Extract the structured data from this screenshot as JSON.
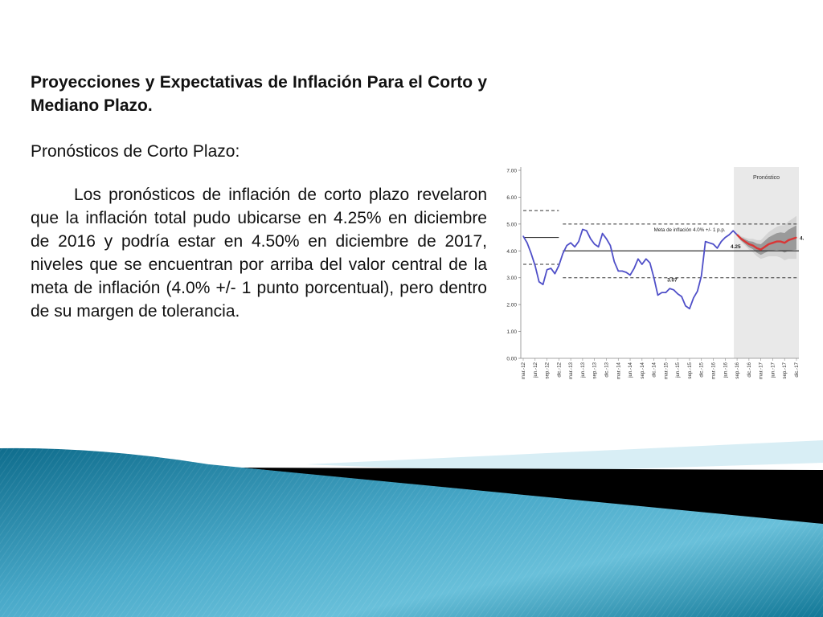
{
  "slide": {
    "title": "Proyecciones y Expectativas de Inflación Para el Corto y Mediano Plazo.",
    "subtitle": "Pronósticos de Corto Plazo:",
    "body": "Los pronósticos de inflación de corto plazo revelaron que la inflación total pudo ubicarse en 4.25% en diciembre de 2016 y podría estar en 4.50% en diciembre de 2017, niveles que se encuentran por arriba del valor central de la meta de inflación (4.0% +/- 1 punto porcentual), pero dentro de su margen de tolerancia."
  },
  "chart_data": {
    "type": "line",
    "title": "",
    "ylim": [
      0,
      7
    ],
    "yticks": [
      "0.00",
      "1.00",
      "2.00",
      "3.00",
      "4.00",
      "5.00",
      "6.00",
      "7.00"
    ],
    "x_ticks": [
      "mar.-12",
      "jun.-12",
      "sep.-12",
      "dic.-12",
      "mar.-13",
      "jun.-13",
      "sep.-13",
      "dic.-13",
      "mar.-14",
      "jun.-14",
      "sep.-14",
      "dic.-14",
      "mar.-15",
      "jun.-15",
      "sep.-15",
      "dic.-15",
      "mar.-16",
      "jun.-16",
      "sep.-16",
      "dic.-16",
      "mar.-17",
      "jun.-17",
      "sep.-17",
      "dic.-17"
    ],
    "forecast_label": "Pronóstico",
    "target_label": "Meta de inflación 4.0% +/- 1 p.p.",
    "target": {
      "central": 4.0,
      "upper": 5.0,
      "lower": 3.0
    },
    "old_target": {
      "central": 4.5,
      "upper": 5.5,
      "lower": 3.5
    },
    "series": [
      {
        "color": "#4f4fc8",
        "x": [
          "mar.-12",
          "abr.-12",
          "may.-12",
          "jun.-12",
          "jul.-12",
          "ago.-12",
          "sep.-12",
          "oct.-12",
          "nov.-12",
          "dic.-12",
          "ene.-13",
          "feb.-13",
          "mar.-13",
          "abr.-13",
          "may.-13",
          "jun.-13",
          "jul.-13",
          "ago.-13",
          "sep.-13",
          "oct.-13",
          "nov.-13",
          "dic.-13",
          "ene.-14",
          "feb.-14",
          "mar.-14",
          "abr.-14",
          "may.-14",
          "jun.-14",
          "jul.-14",
          "ago.-14",
          "sep.-14",
          "oct.-14",
          "nov.-14",
          "dic.-14",
          "ene.-15",
          "feb.-15",
          "mar.-15",
          "abr.-15",
          "may.-15",
          "jun.-15",
          "jul.-15",
          "ago.-15",
          "sep.-15",
          "oct.-15",
          "nov.-15",
          "dic.-15",
          "ene.-16",
          "feb.-16",
          "mar.-16",
          "abr.-16",
          "may.-16",
          "jun.-16",
          "jul.-16",
          "ago.-16",
          "sep.-16"
        ],
        "values": [
          4.55,
          4.3,
          3.9,
          3.45,
          2.85,
          2.75,
          3.3,
          3.35,
          3.15,
          3.45,
          3.9,
          4.2,
          4.3,
          4.15,
          4.35,
          4.8,
          4.75,
          4.45,
          4.25,
          4.15,
          4.65,
          4.45,
          4.2,
          3.6,
          3.25,
          3.25,
          3.2,
          3.1,
          3.35,
          3.7,
          3.5,
          3.7,
          3.55,
          3.0,
          2.35,
          2.45,
          2.45,
          2.6,
          2.55,
          2.4,
          2.3,
          1.95,
          1.85,
          2.25,
          2.5,
          3.07,
          4.35,
          4.3,
          4.25,
          4.1,
          4.35,
          4.5,
          4.6,
          4.75,
          4.6
        ]
      },
      {
        "color": "#d93636",
        "x": [
          "sep.-16",
          "oct.-16",
          "nov.-16",
          "dic.-16",
          "ene.-17",
          "feb.-17",
          "mar.-17",
          "abr.-17",
          "may.-17",
          "jun.-17",
          "jul.-17",
          "ago.-17",
          "sep.-17",
          "oct.-17",
          "nov.-17",
          "dic.-17"
        ],
        "values": [
          4.6,
          4.45,
          4.35,
          4.25,
          4.2,
          4.1,
          4.05,
          4.15,
          4.25,
          4.3,
          4.35,
          4.35,
          4.3,
          4.4,
          4.45,
          4.5
        ]
      }
    ],
    "annotations": [
      {
        "text": "4.25",
        "x": "nov.-16",
        "y": 4.1
      },
      {
        "text": "4.50",
        "x": "dic.-17",
        "y": 4.5
      },
      {
        "text": "3.07",
        "x": "jul.-15",
        "y": 2.85
      }
    ],
    "grid": false,
    "colors": {
      "band_outer": "#d4d4d4",
      "band_inner": "#9a9a9a",
      "forecast_bg": "#e9e9e9"
    }
  },
  "decor_colors": {
    "teal_dark": "#0e6c8c",
    "teal_light": "#6ec4dc",
    "pale": "#d8eef5",
    "black": "#000000"
  }
}
